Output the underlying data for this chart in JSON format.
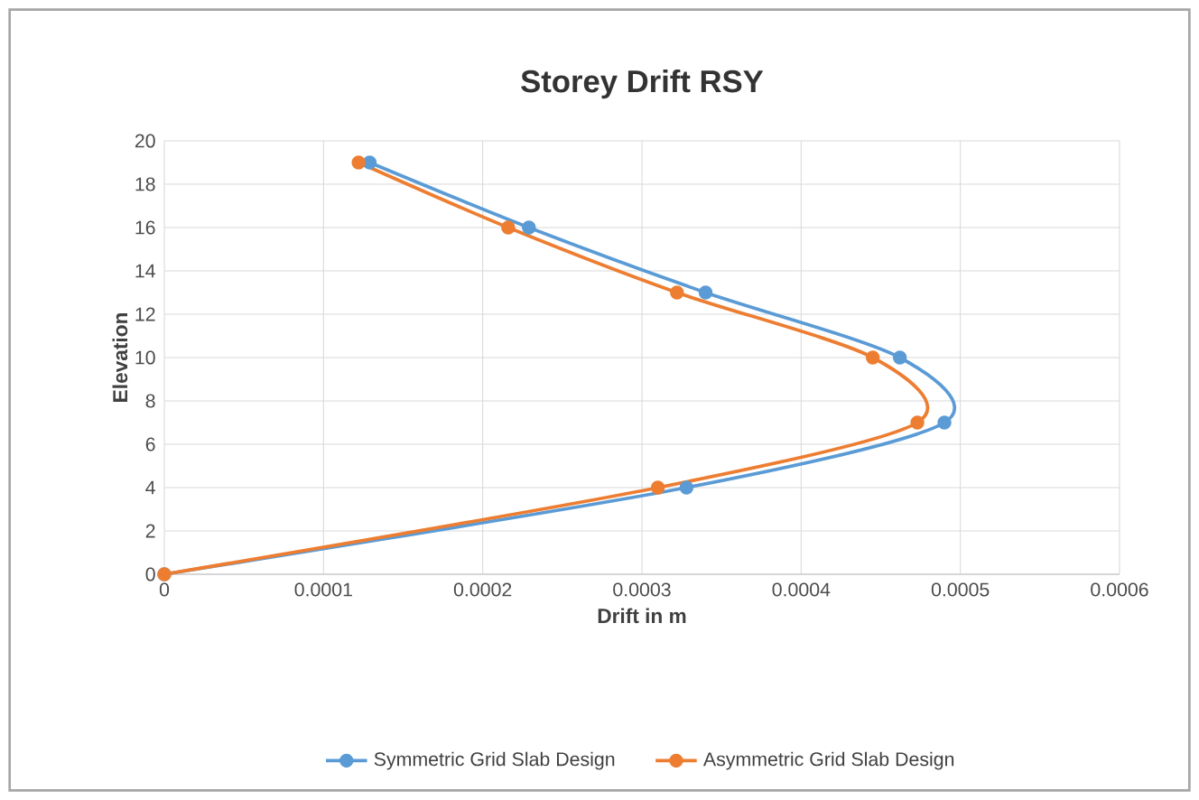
{
  "chart_data": {
    "type": "line",
    "title": "Storey Drift RSY",
    "xlabel": "Drift in m",
    "ylabel": "Elevation",
    "series": [
      {
        "name": "Symmetric Grid Slab Design",
        "color": "#5b9bd5",
        "x": [
          0,
          0.000328,
          0.00049,
          0.000462,
          0.00034,
          0.000229,
          0.000129
        ],
        "values": [
          0,
          4,
          7,
          10,
          13,
          16,
          19
        ]
      },
      {
        "name": "Asymmetric Grid Slab Design",
        "color": "#ed7d31",
        "x": [
          0,
          0.00031,
          0.000473,
          0.000445,
          0.000322,
          0.000216,
          0.000122
        ],
        "values": [
          0,
          4,
          7,
          10,
          13,
          16,
          19
        ]
      }
    ],
    "xlim": [
      0,
      0.0006
    ],
    "xticks": [
      0,
      0.0001,
      0.0002,
      0.0003,
      0.0004,
      0.0005,
      0.0006
    ],
    "ylim": [
      0,
      20
    ],
    "yticks": [
      0,
      2,
      4,
      6,
      8,
      10,
      12,
      14,
      16,
      18,
      20
    ],
    "grid": true,
    "legend": "bottom",
    "marker": "circle",
    "line_style": "solid"
  }
}
